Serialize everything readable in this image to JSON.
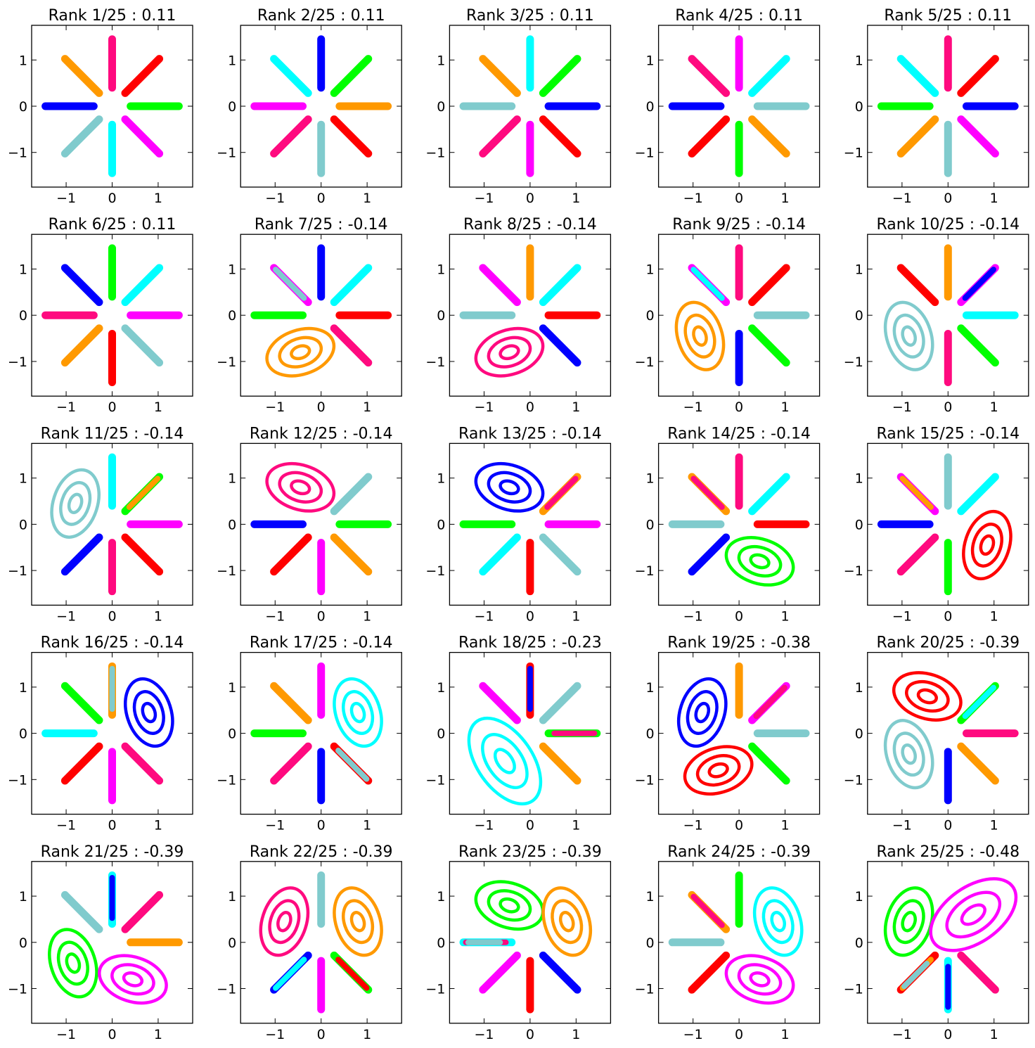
{
  "figure": {
    "rows": 5,
    "cols": 5
  },
  "palette": {
    "c0": "#0000ff",
    "c1": "#00ff00",
    "c2": "#ff0000",
    "c3": "#00ffff",
    "c4": "#ff00ff",
    "c5": "#80cbcd",
    "c6": "#ff9900",
    "c7": "#ff0a7f"
  },
  "chart_data": [
    {
      "type": "scatter",
      "title": "Rank 1/25 : 0.11",
      "xlim": [
        -1.75,
        1.75
      ],
      "ylim": [
        -1.75,
        1.75
      ],
      "xticks": [
        "−1",
        "0",
        "1"
      ],
      "yticks": [
        "1",
        "0",
        "−1"
      ],
      "spokes": [
        [
          "c1"
        ],
        [
          "c2"
        ],
        [
          "c7"
        ],
        [
          "c6"
        ],
        [
          "c0"
        ],
        [
          "c5"
        ],
        [
          "c3"
        ],
        [
          "c4"
        ]
      ],
      "blobs": []
    },
    {
      "type": "scatter",
      "title": "Rank 2/25 : 0.11",
      "xlim": [
        -1.75,
        1.75
      ],
      "ylim": [
        -1.75,
        1.75
      ],
      "xticks": [
        "−1",
        "0",
        "1"
      ],
      "yticks": [
        "1",
        "0",
        "−1"
      ],
      "spokes": [
        [
          "c6"
        ],
        [
          "c1"
        ],
        [
          "c0"
        ],
        [
          "c3"
        ],
        [
          "c4"
        ],
        [
          "c7"
        ],
        [
          "c5"
        ],
        [
          "c2"
        ]
      ],
      "blobs": []
    },
    {
      "type": "scatter",
      "title": "Rank 3/25 : 0.11",
      "xlim": [
        -1.75,
        1.75
      ],
      "ylim": [
        -1.75,
        1.75
      ],
      "xticks": [
        "−1",
        "0",
        "1"
      ],
      "yticks": [
        "1",
        "0",
        "−1"
      ],
      "spokes": [
        [
          "c0"
        ],
        [
          "c1"
        ],
        [
          "c3"
        ],
        [
          "c6"
        ],
        [
          "c5"
        ],
        [
          "c7"
        ],
        [
          "c4"
        ],
        [
          "c2"
        ]
      ],
      "blobs": []
    },
    {
      "type": "scatter",
      "title": "Rank 4/25 : 0.11",
      "xlim": [
        -1.75,
        1.75
      ],
      "ylim": [
        -1.75,
        1.75
      ],
      "xticks": [
        "−1",
        "0",
        "1"
      ],
      "yticks": [
        "1",
        "0",
        "−1"
      ],
      "spokes": [
        [
          "c5"
        ],
        [
          "c3"
        ],
        [
          "c4"
        ],
        [
          "c7"
        ],
        [
          "c0"
        ],
        [
          "c2"
        ],
        [
          "c1"
        ],
        [
          "c6"
        ]
      ],
      "blobs": []
    },
    {
      "type": "scatter",
      "title": "Rank 5/25 : 0.11",
      "xlim": [
        -1.75,
        1.75
      ],
      "ylim": [
        -1.75,
        1.75
      ],
      "xticks": [
        "−1",
        "0",
        "1"
      ],
      "yticks": [
        "1",
        "0",
        "−1"
      ],
      "spokes": [
        [
          "c0"
        ],
        [
          "c2"
        ],
        [
          "c7"
        ],
        [
          "c3"
        ],
        [
          "c1"
        ],
        [
          "c6"
        ],
        [
          "c5"
        ],
        [
          "c4"
        ]
      ],
      "blobs": []
    },
    {
      "type": "scatter",
      "title": "Rank 6/25 : 0.11",
      "xlim": [
        -1.75,
        1.75
      ],
      "ylim": [
        -1.75,
        1.75
      ],
      "xticks": [
        "−1",
        "0",
        "1"
      ],
      "yticks": [
        "1",
        "0",
        "−1"
      ],
      "spokes": [
        [
          "c4"
        ],
        [
          "c3"
        ],
        [
          "c1"
        ],
        [
          "c0"
        ],
        [
          "c7"
        ],
        [
          "c6"
        ],
        [
          "c2"
        ],
        [
          "c5"
        ]
      ],
      "blobs": []
    },
    {
      "type": "scatter",
      "title": "Rank 7/25 : -0.14",
      "xlim": [
        -1.75,
        1.75
      ],
      "ylim": [
        -1.75,
        1.75
      ],
      "xticks": [
        "−1",
        "0",
        "1"
      ],
      "yticks": [
        "1",
        "0",
        "−1"
      ],
      "spokes": [
        [
          "c2"
        ],
        [
          "c3"
        ],
        [
          "c0"
        ],
        [
          "c4",
          "c5"
        ],
        [
          "c1"
        ],
        [],
        [],
        [
          "c7"
        ]
      ],
      "blobs": [
        {
          "color": "c6",
          "cx": -0.45,
          "cy": -0.8,
          "rx": 0.75,
          "ry": 0.48,
          "angle": -18
        }
      ]
    },
    {
      "type": "scatter",
      "title": "Rank 8/25 : -0.14",
      "xlim": [
        -1.75,
        1.75
      ],
      "ylim": [
        -1.75,
        1.75
      ],
      "xticks": [
        "−1",
        "0",
        "1"
      ],
      "yticks": [
        "1",
        "0",
        "−1"
      ],
      "spokes": [
        [
          "c2"
        ],
        [
          "c3"
        ],
        [
          "c6"
        ],
        [
          "c4"
        ],
        [
          "c5"
        ],
        [],
        [],
        [
          "c0"
        ]
      ],
      "blobs": [
        {
          "color": "c7",
          "cx": -0.45,
          "cy": -0.8,
          "rx": 0.75,
          "ry": 0.48,
          "angle": -18
        }
      ]
    },
    {
      "type": "scatter",
      "title": "Rank 9/25 : -0.14",
      "xlim": [
        -1.75,
        1.75
      ],
      "ylim": [
        -1.75,
        1.75
      ],
      "xticks": [
        "−1",
        "0",
        "1"
      ],
      "yticks": [
        "1",
        "0",
        "−1"
      ],
      "spokes": [
        [
          "c5"
        ],
        [
          "c2"
        ],
        [
          "c7"
        ],
        [
          "c4",
          "c3"
        ],
        [],
        [],
        [
          "c0"
        ],
        [
          "c1"
        ]
      ],
      "blobs": [
        {
          "color": "c6",
          "cx": -0.85,
          "cy": -0.45,
          "rx": 0.48,
          "ry": 0.75,
          "angle": -18
        }
      ]
    },
    {
      "type": "scatter",
      "title": "Rank 10/25 : -0.14",
      "xlim": [
        -1.75,
        1.75
      ],
      "ylim": [
        -1.75,
        1.75
      ],
      "xticks": [
        "−1",
        "0",
        "1"
      ],
      "yticks": [
        "1",
        "0",
        "−1"
      ],
      "spokes": [
        [
          "c3"
        ],
        [
          "c4",
          "c0"
        ],
        [
          "c6"
        ],
        [
          "c2"
        ],
        [],
        [],
        [
          "c7"
        ],
        [
          "c1"
        ]
      ],
      "blobs": [
        {
          "color": "c5",
          "cx": -0.85,
          "cy": -0.45,
          "rx": 0.48,
          "ry": 0.75,
          "angle": -18
        }
      ]
    },
    {
      "type": "scatter",
      "title": "Rank 11/25 : -0.14",
      "xlim": [
        -1.75,
        1.75
      ],
      "ylim": [
        -1.75,
        1.75
      ],
      "xticks": [
        "−1",
        "0",
        "1"
      ],
      "yticks": [
        "1",
        "0",
        "−1"
      ],
      "spokes": [
        [
          "c4"
        ],
        [
          "c1",
          "c6"
        ],
        [
          "c3"
        ],
        [],
        [],
        [
          "c0"
        ],
        [
          "c7"
        ],
        [
          "c2"
        ]
      ],
      "blobs": [
        {
          "color": "c5",
          "cx": -0.8,
          "cy": 0.45,
          "rx": 0.48,
          "ry": 0.75,
          "angle": 18
        }
      ]
    },
    {
      "type": "scatter",
      "title": "Rank 12/25 : -0.14",
      "xlim": [
        -1.75,
        1.75
      ],
      "ylim": [
        -1.75,
        1.75
      ],
      "xticks": [
        "−1",
        "0",
        "1"
      ],
      "yticks": [
        "1",
        "0",
        "−1"
      ],
      "spokes": [
        [
          "c1"
        ],
        [
          "c5"
        ],
        [],
        [],
        [
          "c0"
        ],
        [
          "c2"
        ],
        [
          "c4"
        ],
        [
          "c6"
        ]
      ],
      "blobs": [
        {
          "color": "c7",
          "cx": -0.45,
          "cy": 0.8,
          "rx": 0.75,
          "ry": 0.48,
          "angle": 18
        }
      ]
    },
    {
      "type": "scatter",
      "title": "Rank 13/25 : -0.14",
      "xlim": [
        -1.75,
        1.75
      ],
      "ylim": [
        -1.75,
        1.75
      ],
      "xticks": [
        "−1",
        "0",
        "1"
      ],
      "yticks": [
        "1",
        "0",
        "−1"
      ],
      "spokes": [
        [
          "c4"
        ],
        [
          "c6",
          "c7"
        ],
        [],
        [],
        [
          "c1"
        ],
        [
          "c3"
        ],
        [
          "c2"
        ],
        [
          "c5"
        ]
      ],
      "blobs": [
        {
          "color": "c0",
          "cx": -0.45,
          "cy": 0.8,
          "rx": 0.75,
          "ry": 0.48,
          "angle": 18
        }
      ]
    },
    {
      "type": "scatter",
      "title": "Rank 14/25 : -0.14",
      "xlim": [
        -1.75,
        1.75
      ],
      "ylim": [
        -1.75,
        1.75
      ],
      "xticks": [
        "−1",
        "0",
        "1"
      ],
      "yticks": [
        "1",
        "0",
        "−1"
      ],
      "spokes": [
        [
          "c2"
        ],
        [
          "c3"
        ],
        [
          "c7"
        ],
        [
          "c6",
          "c7"
        ],
        [
          "c5"
        ],
        [
          "c0"
        ],
        [],
        []
      ],
      "blobs": [
        {
          "color": "c1",
          "cx": 0.45,
          "cy": -0.8,
          "rx": 0.75,
          "ry": 0.48,
          "angle": 18
        }
      ]
    },
    {
      "type": "scatter",
      "title": "Rank 15/25 : -0.14",
      "xlim": [
        -1.75,
        1.75
      ],
      "ylim": [
        -1.75,
        1.75
      ],
      "xticks": [
        "−1",
        "0",
        "1"
      ],
      "yticks": [
        "1",
        "0",
        "−1"
      ],
      "spokes": [
        [],
        [
          "c3"
        ],
        [
          "c5"
        ],
        [
          "c4",
          "c6"
        ],
        [
          "c0"
        ],
        [
          "c7"
        ],
        [
          "c1"
        ],
        []
      ],
      "blobs": [
        {
          "color": "c2",
          "cx": 0.85,
          "cy": -0.45,
          "rx": 0.48,
          "ry": 0.75,
          "angle": 18
        }
      ]
    },
    {
      "type": "scatter",
      "title": "Rank 16/25 : -0.14",
      "xlim": [
        -1.75,
        1.75
      ],
      "ylim": [
        -1.75,
        1.75
      ],
      "xticks": [
        "−1",
        "0",
        "1"
      ],
      "yticks": [
        "1",
        "0",
        "−1"
      ],
      "spokes": [
        [],
        [],
        [
          "c6",
          "c5"
        ],
        [
          "c1"
        ],
        [
          "c3"
        ],
        [
          "c2"
        ],
        [
          "c4"
        ],
        [
          "c7"
        ]
      ],
      "blobs": [
        {
          "color": "c0",
          "cx": 0.8,
          "cy": 0.45,
          "rx": 0.48,
          "ry": 0.75,
          "angle": -18
        }
      ]
    },
    {
      "type": "scatter",
      "title": "Rank 17/25 : -0.14",
      "xlim": [
        -1.75,
        1.75
      ],
      "ylim": [
        -1.75,
        1.75
      ],
      "xticks": [
        "−1",
        "0",
        "1"
      ],
      "yticks": [
        "1",
        "0",
        "−1"
      ],
      "spokes": [
        [],
        [],
        [
          "c4"
        ],
        [
          "c6"
        ],
        [
          "c1"
        ],
        [
          "c7"
        ],
        [
          "c0"
        ],
        [
          "c2",
          "c5"
        ]
      ],
      "blobs": [
        {
          "color": "c3",
          "cx": 0.8,
          "cy": 0.45,
          "rx": 0.48,
          "ry": 0.75,
          "angle": -18
        }
      ]
    },
    {
      "type": "scatter",
      "title": "Rank 18/25 : -0.23",
      "xlim": [
        -1.75,
        1.75
      ],
      "ylim": [
        -1.75,
        1.75
      ],
      "xticks": [
        "−1",
        "0",
        "1"
      ],
      "yticks": [
        "1",
        "0",
        "−1"
      ],
      "spokes": [
        [
          "c1",
          "c7"
        ],
        [
          "c5"
        ],
        [
          "c2",
          "c0"
        ],
        [
          "c4"
        ],
        [],
        [],
        [],
        [
          "c6"
        ]
      ],
      "blobs": [
        {
          "color": "c3",
          "cx": -0.55,
          "cy": -0.6,
          "rx": 0.6,
          "ry": 1.05,
          "angle": -35
        }
      ]
    },
    {
      "type": "scatter",
      "title": "Rank 19/25 : -0.38",
      "xlim": [
        -1.75,
        1.75
      ],
      "ylim": [
        -1.75,
        1.75
      ],
      "xticks": [
        "−1",
        "0",
        "1"
      ],
      "yticks": [
        "1",
        "0",
        "−1"
      ],
      "spokes": [
        [
          "c5"
        ],
        [
          "c4",
          "c7"
        ],
        [
          "c6"
        ],
        [],
        [],
        [],
        [],
        [
          "c1"
        ]
      ],
      "blobs": [
        {
          "color": "c0",
          "cx": -0.8,
          "cy": 0.45,
          "rx": 0.48,
          "ry": 0.75,
          "angle": 18
        },
        {
          "color": "c2",
          "cx": -0.45,
          "cy": -0.8,
          "rx": 0.75,
          "ry": 0.48,
          "angle": -18
        }
      ]
    },
    {
      "type": "scatter",
      "title": "Rank 20/25 : -0.39",
      "xlim": [
        -1.75,
        1.75
      ],
      "ylim": [
        -1.75,
        1.75
      ],
      "xticks": [
        "−1",
        "0",
        "1"
      ],
      "yticks": [
        "1",
        "0",
        "−1"
      ],
      "spokes": [
        [
          "c7"
        ],
        [
          "c1",
          "c3"
        ],
        [],
        [],
        [],
        [],
        [
          "c0"
        ],
        [
          "c6"
        ]
      ],
      "blobs": [
        {
          "color": "c2",
          "cx": -0.45,
          "cy": 0.8,
          "rx": 0.75,
          "ry": 0.48,
          "angle": 18
        },
        {
          "color": "c5",
          "cx": -0.85,
          "cy": -0.45,
          "rx": 0.48,
          "ry": 0.75,
          "angle": -18
        }
      ]
    },
    {
      "type": "scatter",
      "title": "Rank 21/25 : -0.39",
      "xlim": [
        -1.75,
        1.75
      ],
      "ylim": [
        -1.75,
        1.75
      ],
      "xticks": [
        "−1",
        "0",
        "1"
      ],
      "yticks": [
        "1",
        "0",
        "−1"
      ],
      "spokes": [
        [
          "c6"
        ],
        [
          "c7"
        ],
        [
          "c3",
          "c0"
        ],
        [
          "c5"
        ],
        [],
        [],
        [],
        []
      ],
      "blobs": [
        {
          "color": "c1",
          "cx": -0.85,
          "cy": -0.45,
          "rx": 0.48,
          "ry": 0.75,
          "angle": -18
        },
        {
          "color": "c4",
          "cx": 0.45,
          "cy": -0.8,
          "rx": 0.75,
          "ry": 0.48,
          "angle": 18
        }
      ]
    },
    {
      "type": "scatter",
      "title": "Rank 22/25 : -0.39",
      "xlim": [
        -1.75,
        1.75
      ],
      "ylim": [
        -1.75,
        1.75
      ],
      "xticks": [
        "−1",
        "0",
        "1"
      ],
      "yticks": [
        "1",
        "0",
        "−1"
      ],
      "spokes": [
        [],
        [],
        [
          "c5"
        ],
        [],
        [],
        [
          "c0",
          "c3"
        ],
        [
          "c4"
        ],
        [
          "c1",
          "c2"
        ]
      ],
      "blobs": [
        {
          "color": "c6",
          "cx": 0.8,
          "cy": 0.45,
          "rx": 0.48,
          "ry": 0.75,
          "angle": -18
        },
        {
          "color": "c7",
          "cx": -0.8,
          "cy": 0.45,
          "rx": 0.48,
          "ry": 0.75,
          "angle": 18
        }
      ]
    },
    {
      "type": "scatter",
      "title": "Rank 23/25 : -0.39",
      "xlim": [
        -1.75,
        1.75
      ],
      "ylim": [
        -1.75,
        1.75
      ],
      "xticks": [
        "−1",
        "0",
        "1"
      ],
      "yticks": [
        "1",
        "0",
        "−1"
      ],
      "spokes": [
        [],
        [],
        [],
        [],
        [
          "c3",
          "c7",
          "c5"
        ],
        [
          "c4"
        ],
        [
          "c2"
        ],
        [
          "c0"
        ]
      ],
      "blobs": [
        {
          "color": "c1",
          "cx": -0.45,
          "cy": 0.8,
          "rx": 0.75,
          "ry": 0.48,
          "angle": 18
        },
        {
          "color": "c6",
          "cx": 0.8,
          "cy": 0.45,
          "rx": 0.48,
          "ry": 0.75,
          "angle": -18
        }
      ]
    },
    {
      "type": "scatter",
      "title": "Rank 24/25 : -0.39",
      "xlim": [
        -1.75,
        1.75
      ],
      "ylim": [
        -1.75,
        1.75
      ],
      "xticks": [
        "−1",
        "0",
        "1"
      ],
      "yticks": [
        "1",
        "0",
        "−1"
      ],
      "spokes": [
        [],
        [],
        [
          "c1"
        ],
        [
          "c6",
          "c7"
        ],
        [
          "c5"
        ],
        [
          "c2"
        ],
        [],
        []
      ],
      "blobs": [
        {
          "color": "c3",
          "cx": 0.85,
          "cy": 0.45,
          "rx": 0.48,
          "ry": 0.75,
          "angle": -18
        },
        {
          "color": "c4",
          "cx": 0.45,
          "cy": -0.8,
          "rx": 0.75,
          "ry": 0.48,
          "angle": 18
        }
      ]
    },
    {
      "type": "scatter",
      "title": "Rank 25/25 : -0.48",
      "xlim": [
        -1.75,
        1.75
      ],
      "ylim": [
        -1.75,
        1.75
      ],
      "xticks": [
        "−1",
        "0",
        "1"
      ],
      "yticks": [
        "1",
        "0",
        "−1"
      ],
      "spokes": [
        [],
        [],
        [],
        [],
        [],
        [
          "c2",
          "c6",
          "c5"
        ],
        [
          "c3",
          "c0"
        ],
        [
          "c7"
        ]
      ],
      "blobs": [
        {
          "color": "c1",
          "cx": -0.85,
          "cy": 0.45,
          "rx": 0.48,
          "ry": 0.75,
          "angle": 18
        },
        {
          "color": "c4",
          "cx": 0.55,
          "cy": 0.6,
          "rx": 1.05,
          "ry": 0.6,
          "angle": -35
        }
      ]
    }
  ]
}
